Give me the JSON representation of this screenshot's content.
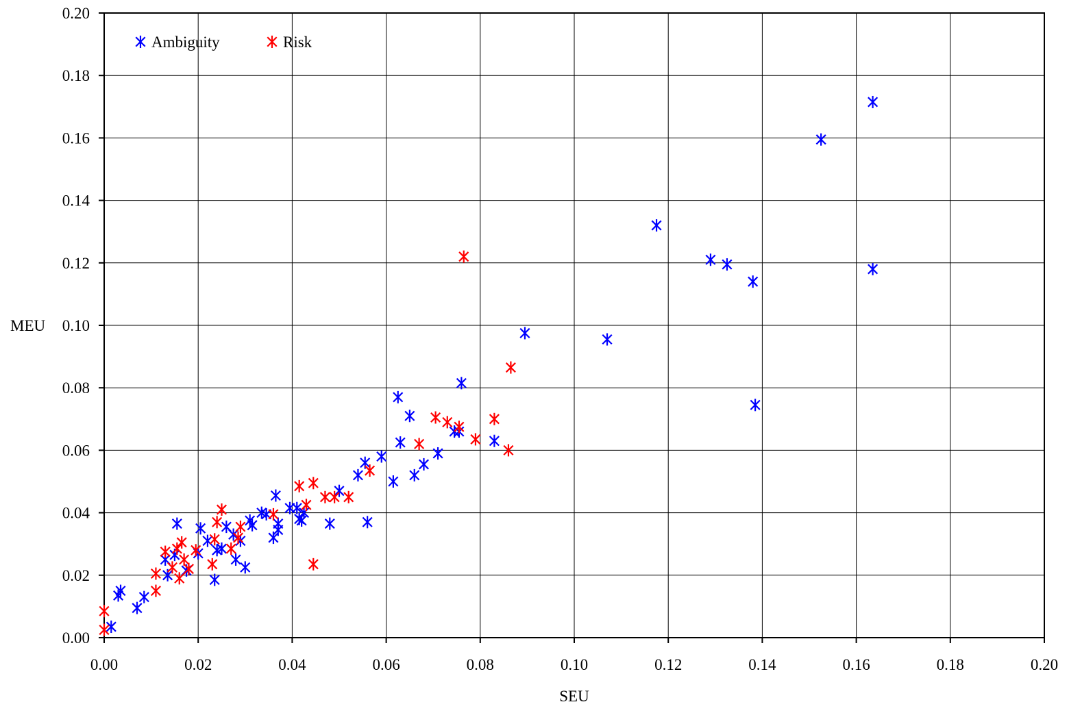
{
  "chart_data": {
    "type": "scatter",
    "xlabel": "SEU",
    "ylabel": "MEU",
    "xlim": [
      0,
      0.2
    ],
    "ylim": [
      0,
      0.2
    ],
    "xticks": [
      "0.00",
      "0.02",
      "0.04",
      "0.06",
      "0.08",
      "0.10",
      "0.12",
      "0.14",
      "0.16",
      "0.18",
      "0.20"
    ],
    "yticks": [
      "0.00",
      "0.02",
      "0.04",
      "0.06",
      "0.08",
      "0.10",
      "0.12",
      "0.14",
      "0.16",
      "0.18",
      "0.20"
    ],
    "grid": true,
    "legend_position": "top-left",
    "marker": "asterisk",
    "series": [
      {
        "name": "Ambiguity",
        "color": "#0000FF",
        "points": [
          [
            0.0015,
            0.0035
          ],
          [
            0.003,
            0.0135
          ],
          [
            0.0035,
            0.015
          ],
          [
            0.007,
            0.0095
          ],
          [
            0.0085,
            0.013
          ],
          [
            0.013,
            0.025
          ],
          [
            0.0135,
            0.02
          ],
          [
            0.015,
            0.0265
          ],
          [
            0.0155,
            0.0365
          ],
          [
            0.0175,
            0.0215
          ],
          [
            0.02,
            0.027
          ],
          [
            0.0205,
            0.035
          ],
          [
            0.022,
            0.031
          ],
          [
            0.0235,
            0.0185
          ],
          [
            0.024,
            0.028
          ],
          [
            0.025,
            0.0285
          ],
          [
            0.026,
            0.0355
          ],
          [
            0.0275,
            0.033
          ],
          [
            0.028,
            0.025
          ],
          [
            0.029,
            0.031
          ],
          [
            0.03,
            0.0225
          ],
          [
            0.031,
            0.0375
          ],
          [
            0.0315,
            0.036
          ],
          [
            0.0335,
            0.04
          ],
          [
            0.0345,
            0.0395
          ],
          [
            0.036,
            0.032
          ],
          [
            0.0365,
            0.0455
          ],
          [
            0.037,
            0.0345
          ],
          [
            0.037,
            0.0365
          ],
          [
            0.0395,
            0.0415
          ],
          [
            0.041,
            0.0415
          ],
          [
            0.0415,
            0.038
          ],
          [
            0.042,
            0.0375
          ],
          [
            0.0425,
            0.04
          ],
          [
            0.048,
            0.0365
          ],
          [
            0.05,
            0.047
          ],
          [
            0.054,
            0.052
          ],
          [
            0.0555,
            0.056
          ],
          [
            0.056,
            0.037
          ],
          [
            0.059,
            0.058
          ],
          [
            0.0615,
            0.05
          ],
          [
            0.0625,
            0.077
          ],
          [
            0.063,
            0.0625
          ],
          [
            0.065,
            0.071
          ],
          [
            0.066,
            0.052
          ],
          [
            0.068,
            0.0555
          ],
          [
            0.071,
            0.059
          ],
          [
            0.0745,
            0.066
          ],
          [
            0.0755,
            0.066
          ],
          [
            0.076,
            0.0815
          ],
          [
            0.083,
            0.063
          ],
          [
            0.0895,
            0.0975
          ],
          [
            0.107,
            0.0955
          ],
          [
            0.1175,
            0.132
          ],
          [
            0.129,
            0.121
          ],
          [
            0.1325,
            0.1195
          ],
          [
            0.138,
            0.114
          ],
          [
            0.1385,
            0.0745
          ],
          [
            0.1525,
            0.1595
          ],
          [
            0.1635,
            0.1715
          ],
          [
            0.1635,
            0.118
          ]
        ]
      },
      {
        "name": "Risk",
        "color": "#FF0000",
        "points": [
          [
            0.0,
            0.0025
          ],
          [
            0.0,
            0.0085
          ],
          [
            0.011,
            0.015
          ],
          [
            0.011,
            0.0205
          ],
          [
            0.013,
            0.0275
          ],
          [
            0.0145,
            0.0225
          ],
          [
            0.0155,
            0.0285
          ],
          [
            0.016,
            0.019
          ],
          [
            0.0165,
            0.0305
          ],
          [
            0.017,
            0.025
          ],
          [
            0.018,
            0.022
          ],
          [
            0.0195,
            0.028
          ],
          [
            0.023,
            0.0235
          ],
          [
            0.0235,
            0.0315
          ],
          [
            0.024,
            0.037
          ],
          [
            0.025,
            0.041
          ],
          [
            0.027,
            0.0285
          ],
          [
            0.0285,
            0.032
          ],
          [
            0.029,
            0.0355
          ],
          [
            0.036,
            0.0395
          ],
          [
            0.0415,
            0.0485
          ],
          [
            0.043,
            0.0425
          ],
          [
            0.0445,
            0.0495
          ],
          [
            0.0445,
            0.0235
          ],
          [
            0.047,
            0.045
          ],
          [
            0.049,
            0.045
          ],
          [
            0.052,
            0.045
          ],
          [
            0.0565,
            0.0535
          ],
          [
            0.067,
            0.062
          ],
          [
            0.0705,
            0.0705
          ],
          [
            0.073,
            0.069
          ],
          [
            0.0755,
            0.0675
          ],
          [
            0.0765,
            0.122
          ],
          [
            0.079,
            0.0635
          ],
          [
            0.083,
            0.07
          ],
          [
            0.086,
            0.06
          ],
          [
            0.0865,
            0.0865
          ]
        ]
      }
    ]
  }
}
